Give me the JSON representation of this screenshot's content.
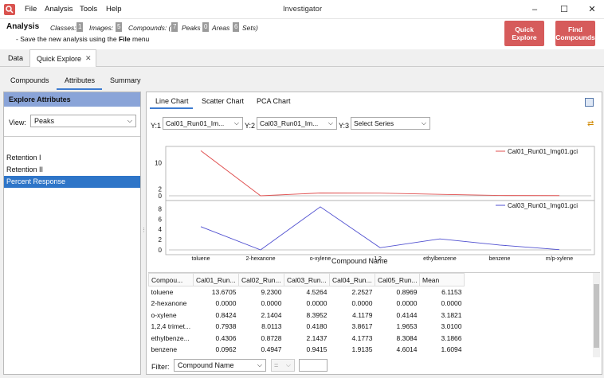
{
  "window": {
    "title": "Investigator",
    "menus": [
      "File",
      "Analysis",
      "Tools",
      "Help"
    ],
    "controls": [
      "–",
      "☐",
      "✕"
    ]
  },
  "info": {
    "title": "Analysis",
    "classes_label": "Classes:",
    "classes_count": "1",
    "images_label": "Images:",
    "images_count": "5",
    "compounds_label": "Compounds: (",
    "peaks_count": "7",
    "peaks_label": "Peaks",
    "areas_count": "0",
    "areas_label": "Areas",
    "sets_count": "6",
    "sets_label": "Sets)",
    "hint_prefix": "- Save the new analysis using the ",
    "hint_bold": "File",
    "hint_suffix": " menu",
    "quick_explore_btn": "Quick\nExplore",
    "find_compounds_btn": "Find\nCompounds"
  },
  "top_tabs": [
    "Data",
    "Quick Explore"
  ],
  "sub_tabs": [
    "Compounds",
    "Attributes",
    "Summary"
  ],
  "left_panel": {
    "header": "Explore Attributes",
    "view_label": "View:",
    "view_value": "Peaks",
    "attributes": [
      "Retention I",
      "Retention II",
      "Percent Response"
    ],
    "selected": "Percent Response"
  },
  "chart_tabs": [
    "Line Chart",
    "Scatter Chart",
    "PCA Chart"
  ],
  "series_selectors": [
    {
      "label": "Y:1",
      "value": "Cal01_Run01_Im..."
    },
    {
      "label": "Y:2",
      "value": "Cal03_Run01_Im..."
    },
    {
      "label": "Y:3",
      "value": "Select Series"
    }
  ],
  "chart_data": [
    {
      "type": "line",
      "categories": [
        "toluene",
        "2-hexanone",
        "o-xylene",
        "1,2...",
        "ethylbenzene",
        "benzene",
        "m/p-xylene"
      ],
      "series": [
        {
          "name": "Cal01_Run01_Img01.gci",
          "values": [
            13.6705,
            0.0,
            0.8424,
            0.7938,
            0.4306,
            0.0962,
            0.06
          ]
        }
      ],
      "yticks": [
        0,
        2,
        10
      ],
      "ylim": [
        0,
        14
      ],
      "color": "#e05050"
    },
    {
      "type": "line",
      "categories": [
        "toluene",
        "2-hexanone",
        "o-xylene",
        "1,2...",
        "ethylbenzene",
        "benzene",
        "m/p-xylene"
      ],
      "series": [
        {
          "name": "Cal03_Run01_Img01.gci",
          "values": [
            4.5264,
            0.0,
            8.3952,
            0.418,
            2.1437,
            0.9415,
            0.05
          ]
        }
      ],
      "yticks": [
        0,
        2,
        4,
        6,
        8
      ],
      "ylim": [
        0,
        9
      ],
      "xlabel": "Compound Name",
      "color": "#5050d0"
    }
  ],
  "table": {
    "columns": [
      "Compou...",
      "Cal01_Run...",
      "Cal02_Run...",
      "Cal03_Run...",
      "Cal04_Run...",
      "Cal05_Run...",
      "Mean"
    ],
    "rows": [
      [
        "toluene",
        "13.6705",
        "9.2300",
        "4.5264",
        "2.2527",
        "0.8969",
        "6.1153"
      ],
      [
        "2-hexanone",
        "0.0000",
        "0.0000",
        "0.0000",
        "0.0000",
        "0.0000",
        "0.0000"
      ],
      [
        "o-xylene",
        "0.8424",
        "2.1404",
        "8.3952",
        "4.1179",
        "0.4144",
        "3.1821"
      ],
      [
        "1,2,4 trimet...",
        "0.7938",
        "8.0113",
        "0.4180",
        "3.8617",
        "1.9653",
        "3.0100"
      ],
      [
        "ethylbenze...",
        "0.4306",
        "0.8728",
        "2.1437",
        "4.1773",
        "8.3084",
        "3.1866"
      ],
      [
        "benzene",
        "0.0962",
        "0.4947",
        "0.9415",
        "1.9135",
        "4.6014",
        "1.6094"
      ]
    ]
  },
  "filter": {
    "label": "Filter:",
    "field": "Compound Name",
    "operator": "="
  }
}
